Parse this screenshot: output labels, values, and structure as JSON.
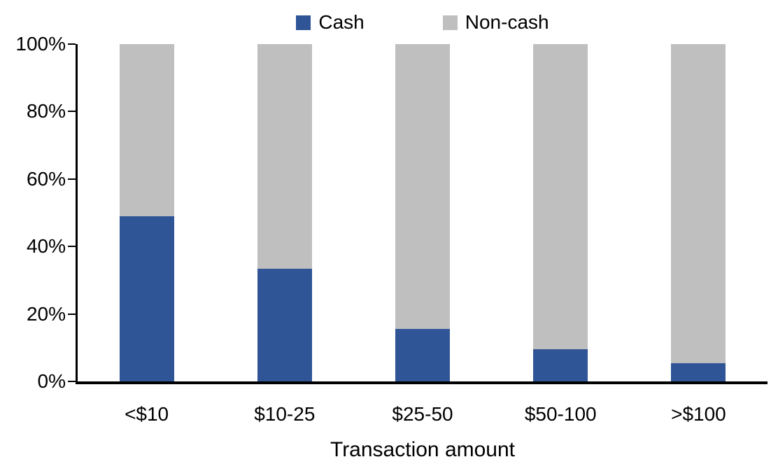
{
  "chart_data": {
    "type": "bar",
    "stacked": true,
    "percent_stacked": true,
    "title": "",
    "xlabel": "Transaction amount",
    "ylabel": "",
    "categories": [
      "<$10",
      "$10-25",
      "$25-50",
      "$50-100",
      ">$100"
    ],
    "series": [
      {
        "name": "Cash",
        "color": "#2F5597",
        "values": [
          49,
          33.5,
          15.5,
          9.5,
          5.5
        ]
      },
      {
        "name": "Non-cash",
        "color": "#BFBFBF",
        "values": [
          51,
          66.5,
          84.5,
          90.5,
          94.5
        ]
      }
    ],
    "ylim": [
      0,
      100
    ],
    "yticks": [
      "0%",
      "20%",
      "40%",
      "60%",
      "80%",
      "100%"
    ],
    "grid": false,
    "legend_position": "top-center",
    "axis_color": "#000000",
    "text_color": "#000000"
  }
}
